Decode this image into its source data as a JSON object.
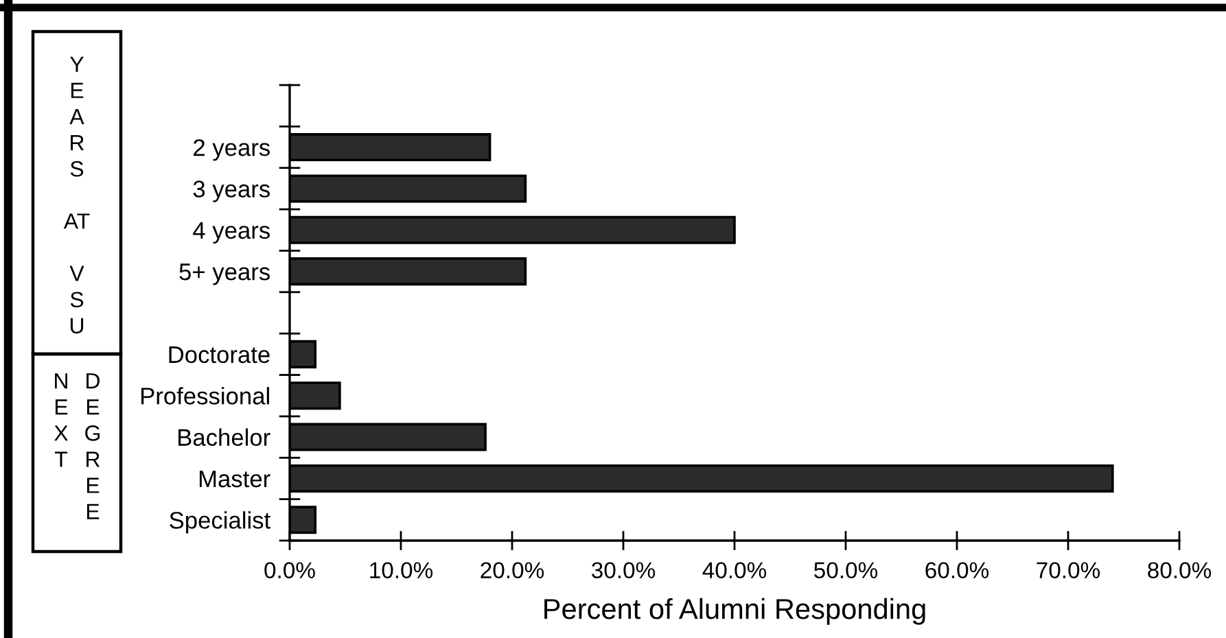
{
  "chart_data": {
    "type": "bar",
    "orientation": "horizontal",
    "categories": [
      null,
      "2 years",
      "3 years",
      "4 years",
      "5+ years",
      null,
      "Doctorate",
      "Professional",
      "Bachelor",
      "Master",
      "Specialist"
    ],
    "values": [
      null,
      18.0,
      21.2,
      40.0,
      21.2,
      null,
      2.3,
      4.5,
      17.6,
      74.0,
      2.3
    ],
    "color": "#2c2a2b",
    "xlabel": "Percent of Alumni Responding",
    "xlim": [
      0,
      80
    ],
    "xticks": [
      {
        "value": 0,
        "label": "0.0%"
      },
      {
        "value": 10,
        "label": "10.0%"
      },
      {
        "value": 20,
        "label": "20.0%"
      },
      {
        "value": 30,
        "label": "30.0%"
      },
      {
        "value": 40,
        "label": "40.0%"
      },
      {
        "value": 50,
        "label": "50.0%"
      },
      {
        "value": 60,
        "label": "60.0%"
      },
      {
        "value": 70,
        "label": "70.0%"
      },
      {
        "value": 80,
        "label": "80.0%"
      }
    ],
    "annotations": [
      "YEARS AT VSU",
      "NEXT DEGREE"
    ]
  }
}
